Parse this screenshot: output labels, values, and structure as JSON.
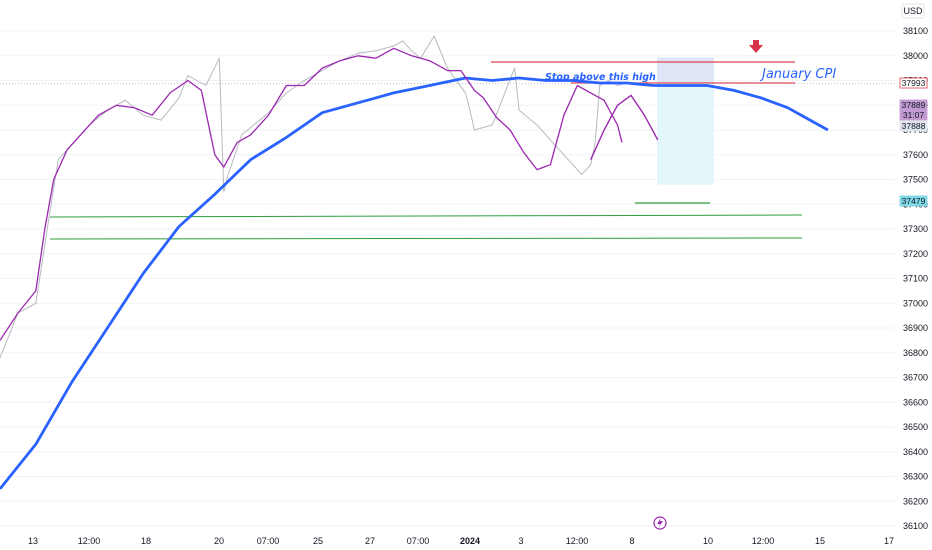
{
  "chart_data": {
    "type": "line",
    "currency": "USD",
    "y_axis": {
      "min": 36100,
      "max": 38100,
      "ticks": [
        38100,
        38000,
        37900,
        37800,
        37700,
        37600,
        37500,
        37400,
        37300,
        37200,
        37100,
        37000,
        36900,
        36800,
        36700,
        36600,
        36500,
        36400,
        36300,
        36200,
        36100
      ]
    },
    "x_axis": {
      "tick_labels": [
        "13",
        "12:00",
        "18",
        "20",
        "07:00",
        "25",
        "27",
        "07:00",
        "2024",
        "3",
        "12:00",
        "8",
        "10",
        "12:00",
        "15",
        "17"
      ]
    },
    "price_badges": [
      {
        "value": "37993",
        "role": "target"
      },
      {
        "value": "37889",
        "role": "last"
      },
      {
        "value": "31:07",
        "role": "countdown"
      },
      {
        "value": "37888",
        "role": "ma"
      },
      {
        "value": "37479",
        "role": "stop"
      }
    ],
    "annotations": {
      "stop_text": "Stop above this high",
      "event_text": "January CPI"
    },
    "levels": {
      "resistance_top": 38070,
      "stop_level": 37980,
      "support_1": 37410,
      "support_2": 37320,
      "short_entry": 37888,
      "short_stop": 37993,
      "short_target": 37479
    },
    "series": [
      {
        "name": "",
        "style": "slow-ma",
        "x": [
          0,
          0.04,
          0.08,
          0.12,
          0.16,
          0.2,
          0.24,
          0.26,
          0.28,
          0.32,
          0.36,
          0.4,
          0.44,
          0.48,
          0.52,
          0.55,
          0.58,
          0.61,
          0.64,
          0.67,
          0.7,
          0.73,
          0.76,
          0.79,
          0.82,
          0.85,
          0.88,
          0.9,
          0.925
        ],
        "values": [
          36250,
          36430,
          36680,
          36900,
          37120,
          37310,
          37440,
          37510,
          37580,
          37670,
          37770,
          37810,
          37850,
          37880,
          37910,
          37900,
          37910,
          37900,
          37900,
          37890,
          37890,
          37880,
          37880,
          37880,
          37860,
          37830,
          37790,
          37750,
          37700
        ]
      },
      {
        "name": "",
        "style": "fast-ma",
        "x": [
          0,
          0.02,
          0.04,
          0.05,
          0.06,
          0.075,
          0.09,
          0.11,
          0.13,
          0.15,
          0.17,
          0.19,
          0.21,
          0.225,
          0.24,
          0.25,
          0.265,
          0.28,
          0.3,
          0.32,
          0.34,
          0.36,
          0.38,
          0.4,
          0.42,
          0.44,
          0.46,
          0.48,
          0.5,
          0.515,
          0.53,
          0.54,
          0.555,
          0.57,
          0.585,
          0.6,
          0.615,
          0.63,
          0.645,
          0.66,
          0.675,
          0.69,
          0.695
        ],
        "values": [
          36850,
          36960,
          37050,
          37300,
          37500,
          37620,
          37680,
          37760,
          37800,
          37790,
          37760,
          37850,
          37900,
          37860,
          37600,
          37550,
          37650,
          37680,
          37760,
          37880,
          37880,
          37950,
          37980,
          38000,
          37990,
          38030,
          38000,
          37980,
          37940,
          37940,
          37860,
          37830,
          37750,
          37700,
          37610,
          37540,
          37560,
          37760,
          37880,
          37850,
          37820,
          37720,
          37650
        ]
      },
      {
        "name": "",
        "style": "price",
        "x": [
          0,
          0.02,
          0.04,
          0.055,
          0.065,
          0.08,
          0.1,
          0.12,
          0.14,
          0.16,
          0.18,
          0.2,
          0.21,
          0.23,
          0.245,
          0.25,
          0.255,
          0.27,
          0.3,
          0.32,
          0.34,
          0.36,
          0.38,
          0.4,
          0.42,
          0.44,
          0.45,
          0.46,
          0.47,
          0.485,
          0.5,
          0.52,
          0.525,
          0.53,
          0.55,
          0.575,
          0.58,
          0.6,
          0.62,
          0.63,
          0.64,
          0.65,
          0.66,
          0.665,
          0.67,
          0.68,
          0.69,
          0.7
        ],
        "values": [
          36780,
          36960,
          37000,
          37350,
          37580,
          37640,
          37720,
          37780,
          37820,
          37760,
          37740,
          37830,
          37920,
          37880,
          37990,
          37450,
          37520,
          37680,
          37770,
          37850,
          37900,
          37940,
          37980,
          38010,
          38020,
          38040,
          38060,
          38020,
          37990,
          38080,
          37950,
          37850,
          37780,
          37700,
          37720,
          37950,
          37780,
          37720,
          37640,
          37600,
          37560,
          37520,
          37560,
          37650,
          37880,
          37900,
          37880,
          37890
        ]
      }
    ],
    "projection": {
      "x": [
        0.66,
        0.675,
        0.69,
        0.705,
        0.72,
        0.735
      ],
      "values": [
        37580,
        37700,
        37800,
        37840,
        37760,
        37660
      ]
    }
  }
}
